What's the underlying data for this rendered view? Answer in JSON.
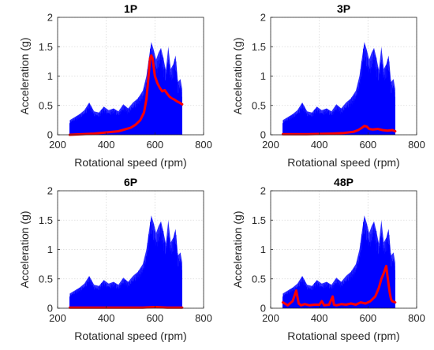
{
  "chart_data": [
    {
      "type": "line",
      "title": "1P",
      "xlabel": "Rotational speed (rpm)",
      "ylabel": "Acceleration (g)",
      "xlim": [
        200,
        800
      ],
      "ylim": [
        0,
        2
      ],
      "xticks": [
        200,
        400,
        600,
        800
      ],
      "yticks": [
        0,
        0.5,
        1,
        1.5,
        2
      ],
      "grid": true,
      "series": [
        {
          "color": "#0000ff",
          "style": "dense-band",
          "x": [
            250,
            270,
            290,
            310,
            330,
            350,
            370,
            390,
            410,
            430,
            450,
            470,
            490,
            510,
            530,
            550,
            565,
            575,
            585,
            595,
            605,
            615,
            625,
            635,
            645,
            655,
            665,
            675,
            685,
            695,
            705,
            712
          ],
          "max": [
            0.25,
            0.3,
            0.35,
            0.42,
            0.55,
            0.4,
            0.38,
            0.48,
            0.42,
            0.45,
            0.4,
            0.52,
            0.45,
            0.55,
            0.62,
            0.75,
            1.0,
            1.3,
            1.58,
            1.45,
            1.28,
            1.4,
            1.48,
            1.3,
            1.1,
            1.5,
            1.12,
            1.2,
            1.35,
            0.9,
            0.95,
            0.78
          ]
        },
        {
          "color": "#ff0000",
          "style": "line",
          "x": [
            250,
            300,
            350,
            400,
            450,
            500,
            520,
            540,
            555,
            565,
            575,
            580,
            585,
            590,
            595,
            600,
            610,
            620,
            630,
            640,
            650,
            660,
            670,
            680,
            690,
            700,
            712
          ],
          "y": [
            0.0,
            0.01,
            0.02,
            0.04,
            0.06,
            0.12,
            0.17,
            0.25,
            0.38,
            0.6,
            1.05,
            1.3,
            1.35,
            1.3,
            1.15,
            1.0,
            0.88,
            0.8,
            0.74,
            0.76,
            0.7,
            0.65,
            0.62,
            0.6,
            0.57,
            0.55,
            0.52
          ]
        }
      ]
    },
    {
      "type": "line",
      "title": "3P",
      "xlabel": "Rotational speed (rpm)",
      "ylabel": "Acceleration (g)",
      "xlim": [
        200,
        800
      ],
      "ylim": [
        0,
        2
      ],
      "xticks": [
        200,
        400,
        600,
        800
      ],
      "yticks": [
        0,
        0.5,
        1,
        1.5,
        2
      ],
      "grid": true,
      "series": [
        {
          "color": "#0000ff",
          "style": "dense-band",
          "x": [
            250,
            270,
            290,
            310,
            330,
            350,
            370,
            390,
            410,
            430,
            450,
            470,
            490,
            510,
            530,
            550,
            565,
            575,
            585,
            595,
            605,
            615,
            625,
            635,
            645,
            655,
            665,
            675,
            685,
            695,
            705,
            712
          ],
          "max": [
            0.25,
            0.3,
            0.35,
            0.42,
            0.55,
            0.4,
            0.38,
            0.48,
            0.42,
            0.45,
            0.4,
            0.52,
            0.45,
            0.55,
            0.62,
            0.75,
            1.0,
            1.3,
            1.58,
            1.45,
            1.28,
            1.4,
            1.48,
            1.3,
            1.1,
            1.5,
            1.12,
            1.2,
            1.35,
            0.9,
            0.95,
            0.78
          ]
        },
        {
          "color": "#ff0000",
          "style": "line",
          "x": [
            250,
            350,
            450,
            500,
            540,
            560,
            575,
            585,
            595,
            605,
            620,
            640,
            660,
            680,
            700,
            712
          ],
          "y": [
            0.01,
            0.01,
            0.02,
            0.03,
            0.05,
            0.08,
            0.12,
            0.15,
            0.14,
            0.1,
            0.09,
            0.1,
            0.08,
            0.07,
            0.08,
            0.06
          ]
        }
      ]
    },
    {
      "type": "line",
      "title": "6P",
      "xlabel": "Rotational speed (rpm)",
      "ylabel": "Acceleration (g)",
      "xlim": [
        200,
        800
      ],
      "ylim": [
        0,
        2
      ],
      "xticks": [
        200,
        400,
        600,
        800
      ],
      "yticks": [
        0,
        0.5,
        1,
        1.5,
        2
      ],
      "grid": true,
      "series": [
        {
          "color": "#0000ff",
          "style": "dense-band",
          "x": [
            250,
            270,
            290,
            310,
            330,
            350,
            370,
            390,
            410,
            430,
            450,
            470,
            490,
            510,
            530,
            550,
            565,
            575,
            585,
            595,
            605,
            615,
            625,
            635,
            645,
            655,
            665,
            675,
            685,
            695,
            705,
            712
          ],
          "max": [
            0.25,
            0.3,
            0.35,
            0.42,
            0.55,
            0.4,
            0.38,
            0.48,
            0.42,
            0.45,
            0.4,
            0.52,
            0.45,
            0.55,
            0.62,
            0.75,
            1.0,
            1.3,
            1.58,
            1.45,
            1.28,
            1.4,
            1.48,
            1.3,
            1.1,
            1.5,
            1.12,
            1.2,
            1.35,
            0.9,
            0.95,
            0.78
          ]
        },
        {
          "color": "#ff0000",
          "style": "line",
          "x": [
            250,
            400,
            550,
            600,
            650,
            712
          ],
          "y": [
            0.01,
            0.01,
            0.01,
            0.02,
            0.01,
            0.01
          ]
        }
      ]
    },
    {
      "type": "line",
      "title": "48P",
      "xlabel": "Rotational speed (rpm)",
      "ylabel": "Acceleration (g)",
      "xlim": [
        200,
        800
      ],
      "ylim": [
        0,
        2
      ],
      "xticks": [
        200,
        400,
        600,
        800
      ],
      "yticks": [
        0,
        0.5,
        1,
        1.5,
        2
      ],
      "grid": true,
      "series": [
        {
          "color": "#0000ff",
          "style": "dense-band",
          "x": [
            250,
            270,
            290,
            310,
            330,
            350,
            370,
            390,
            410,
            430,
            450,
            470,
            490,
            510,
            530,
            550,
            565,
            575,
            585,
            595,
            605,
            615,
            625,
            635,
            645,
            655,
            665,
            675,
            685,
            695,
            705,
            712
          ],
          "max": [
            0.25,
            0.3,
            0.35,
            0.42,
            0.55,
            0.4,
            0.38,
            0.48,
            0.42,
            0.45,
            0.4,
            0.52,
            0.45,
            0.55,
            0.62,
            0.75,
            1.0,
            1.3,
            1.58,
            1.45,
            1.28,
            1.4,
            1.48,
            1.3,
            1.1,
            1.5,
            1.12,
            1.2,
            1.35,
            0.9,
            0.95,
            0.78
          ]
        },
        {
          "color": "#ff0000",
          "style": "line",
          "x": [
            250,
            270,
            290,
            305,
            315,
            325,
            340,
            360,
            380,
            400,
            410,
            420,
            440,
            455,
            460,
            470,
            490,
            510,
            530,
            550,
            570,
            590,
            610,
            630,
            645,
            655,
            665,
            675,
            680,
            685,
            690,
            695,
            700,
            712
          ],
          "y": [
            0.1,
            0.05,
            0.12,
            0.3,
            0.08,
            0.05,
            0.07,
            0.05,
            0.06,
            0.06,
            0.12,
            0.05,
            0.06,
            0.2,
            0.06,
            0.05,
            0.07,
            0.06,
            0.08,
            0.06,
            0.1,
            0.08,
            0.12,
            0.2,
            0.35,
            0.5,
            0.6,
            0.72,
            0.55,
            0.4,
            0.25,
            0.15,
            0.12,
            0.1
          ]
        }
      ]
    }
  ]
}
